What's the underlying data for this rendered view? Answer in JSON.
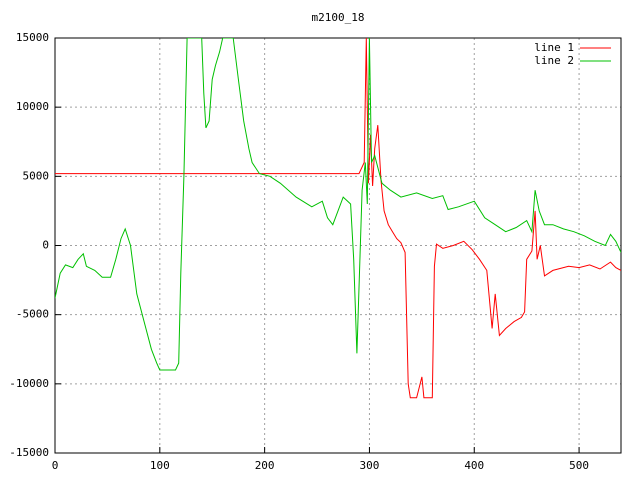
{
  "chart_data": {
    "type": "line",
    "title": "m2100_18",
    "xlim": [
      0,
      540
    ],
    "ylim": [
      -15000,
      15000
    ],
    "xticks": [
      0,
      100,
      200,
      300,
      400,
      500
    ],
    "yticks": [
      -15000,
      -10000,
      -5000,
      0,
      5000,
      10000,
      15000
    ],
    "grid": true,
    "legend": "top-right",
    "series": [
      {
        "name": "line 1",
        "color": "#ff0000",
        "x": [
          0,
          290,
          295,
          297,
          299,
          301,
          303,
          305,
          308,
          311,
          314,
          318,
          322,
          326,
          330,
          334,
          337,
          339,
          345,
          350,
          352,
          356,
          360,
          362,
          364,
          370,
          380,
          390,
          398,
          405,
          412,
          417,
          420,
          424,
          430,
          438,
          445,
          448,
          450,
          455,
          458,
          460,
          463,
          467,
          475,
          490,
          500,
          510,
          520,
          530,
          535,
          540
        ],
        "values": [
          5200,
          5200,
          6000,
          15000,
          4500,
          8000,
          4300,
          7000,
          8700,
          4700,
          2500,
          1500,
          1000,
          500,
          200,
          -500,
          -10000,
          -11000,
          -11000,
          -9500,
          -11000,
          -11000,
          -11000,
          -1500,
          100,
          -200,
          0,
          300,
          -300,
          -1000,
          -1800,
          -6000,
          -3500,
          -6500,
          -6000,
          -5500,
          -5200,
          -4800,
          -1000,
          -400,
          2500,
          -1000,
          0,
          -2200,
          -1800,
          -1500,
          -1600,
          -1400,
          -1700,
          -1200,
          -1600,
          -1800
        ]
      },
      {
        "name": "line 2",
        "color": "#00c000",
        "x": [
          0,
          5,
          10,
          17,
          22,
          27,
          30,
          38,
          45,
          53,
          58,
          63,
          67,
          72,
          78,
          85,
          92,
          97,
          100,
          115,
          118,
          120,
          123,
          126,
          140,
          142,
          144,
          147,
          150,
          153,
          157,
          160,
          170,
          175,
          180,
          185,
          188,
          195,
          205,
          215,
          230,
          245,
          255,
          260,
          265,
          275,
          282,
          285,
          288,
          291,
          293,
          296,
          298,
          300,
          302,
          305,
          312,
          320,
          330,
          345,
          360,
          370,
          375,
          385,
          400,
          410,
          420,
          430,
          440,
          450,
          455,
          458,
          462,
          467,
          475,
          485,
          495,
          505,
          515,
          525,
          530,
          535,
          540
        ],
        "values": [
          -3800,
          -2000,
          -1400,
          -1600,
          -1000,
          -600,
          -1500,
          -1800,
          -2300,
          -2300,
          -1000,
          500,
          1200,
          0,
          -3500,
          -5500,
          -7500,
          -8500,
          -9000,
          -9000,
          -8500,
          -2000,
          5000,
          15000,
          15000,
          11000,
          8500,
          9000,
          12000,
          13000,
          14000,
          15000,
          15000,
          12000,
          9000,
          7000,
          6000,
          5200,
          5000,
          4500,
          3500,
          2800,
          3200,
          2000,
          1500,
          3500,
          3000,
          -1000,
          -7800,
          -800,
          4000,
          6000,
          3000,
          15000,
          6000,
          6500,
          4500,
          4000,
          3500,
          3800,
          3400,
          3600,
          2600,
          2800,
          3200,
          2000,
          1500,
          1000,
          1300,
          1800,
          1000,
          4000,
          2500,
          1500,
          1500,
          1200,
          1000,
          700,
          300,
          0,
          800,
          300,
          -500
        ]
      }
    ]
  }
}
